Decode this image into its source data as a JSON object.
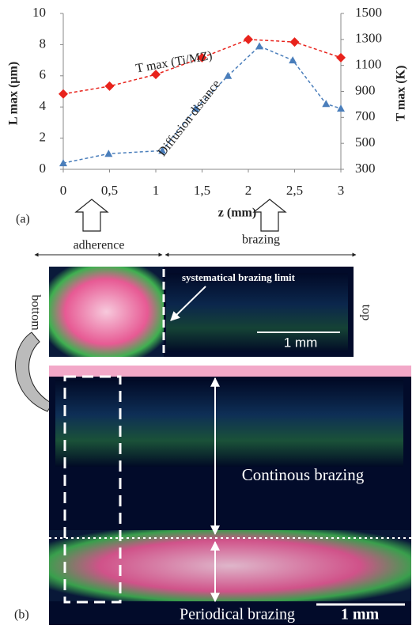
{
  "chart_data": {
    "type": "line",
    "x_label": "z (mm)",
    "y_label": "L max (µm)",
    "y2_label": "T max (K)",
    "xlim": [
      0,
      3
    ],
    "xticks": [
      0,
      {
        "value": 0.5,
        "label": "0,5"
      },
      1,
      {
        "value": 1.5,
        "label": "1,5"
      },
      2,
      {
        "value": 2.5,
        "label": "2,5"
      },
      3
    ],
    "ylim": [
      0,
      10
    ],
    "yticks": [
      0,
      2,
      4,
      6,
      8,
      10
    ],
    "y2lim": [
      300,
      1500
    ],
    "y2ticks": [
      300,
      500,
      700,
      900,
      1100,
      1300,
      1500
    ],
    "series": [
      {
        "name": "T max (Ti/MZ)",
        "color": "#e8231c",
        "axis": "y2",
        "marker": "diamond",
        "x": [
          0,
          0.5,
          1,
          1.5,
          2,
          2.5,
          3
        ],
        "values": [
          880,
          940,
          1030,
          1160,
          1300,
          1280,
          1160
        ]
      },
      {
        "name": "Diffusion distance",
        "color": "#4a7ebb",
        "marker": "triangle",
        "x": [
          0,
          0.49,
          1.07,
          1.43,
          1.78,
          2.12,
          2.48,
          2.84,
          3.0
        ],
        "values": [
          0.4,
          1.0,
          1.2,
          3.9,
          6.0,
          7.9,
          7.0,
          4.2,
          3.9
        ]
      }
    ]
  },
  "panel_a_label": "(a)",
  "zone_labels": [
    "adherence",
    "brazing"
  ],
  "top_image": {
    "annotation": "systematical  brazing limit",
    "scale_bar": "1 mm",
    "left_label": "bottom",
    "right_label": "top"
  },
  "bottom_image": {
    "annotation_upper": "Continous brazing",
    "annotation_lower": "Periodical brazing",
    "scale_bar": "1 mm"
  },
  "panel_b_label": "(b)"
}
